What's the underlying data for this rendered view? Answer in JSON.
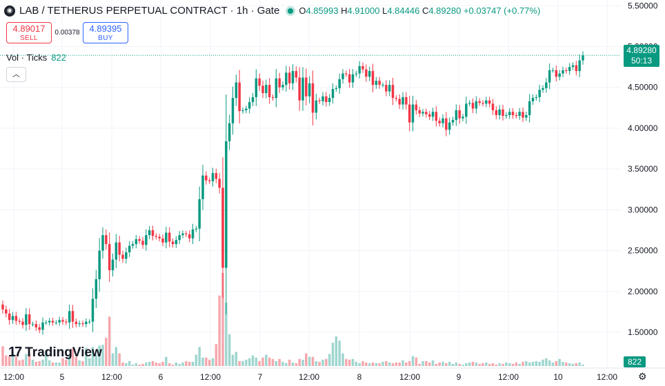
{
  "header": {
    "logo_icon": "exchange-logo-icon",
    "title": "LAB / TETHERUS PERPETUAL CONTRACT · 1h · Gate",
    "open_label": "O",
    "open": "4.85993",
    "high_label": "H",
    "high": "4.91000",
    "low_label": "L",
    "low": "4.84446",
    "close_label": "C",
    "close": "4.89280",
    "change": "+0.03747 (+0.77%)"
  },
  "trade": {
    "sell_price": "4.89017",
    "sell_label": "SELL",
    "spread": "0.00378",
    "buy_price": "4.89395",
    "buy_label": "BUY"
  },
  "volume_legend": {
    "label": "Vol · Ticks",
    "value": "822"
  },
  "collapse_icon": "chevron-up-icon",
  "price_tag": {
    "price": "4.89280",
    "countdown": "50:13"
  },
  "volume_tag": "822",
  "brand": {
    "mark": "17",
    "name": "TradingView"
  },
  "settings_icon": "gear-icon",
  "colors": {
    "up": "#089981",
    "down": "#f23645",
    "up_vol": "#9fd6cf",
    "down_vol": "#f6a7ad",
    "grid": "#f0f3fa"
  },
  "chart_data": {
    "type": "candlestick",
    "timeframe": "1h",
    "y_axis": {
      "ticks": [
        1.5,
        2.0,
        2.5,
        3.0,
        3.5,
        4.0,
        4.5,
        5.0,
        5.5
      ],
      "labels": [
        "1.50000",
        "2.00000",
        "2.50000",
        "3.00000",
        "3.50000",
        "4.00000",
        "4.50000",
        "5.00000",
        "5.50000"
      ],
      "range": [
        1.07,
        5.57
      ]
    },
    "x_axis": {
      "labels": [
        "12:00",
        "5",
        "12:00",
        "6",
        "12:00",
        "7",
        "12:00",
        "8",
        "12:00",
        "9",
        "12:00",
        "10",
        "12:00"
      ]
    },
    "candles_close": [
      1.78,
      1.73,
      1.65,
      1.7,
      1.64,
      1.63,
      1.59,
      1.72,
      1.6,
      1.6,
      1.56,
      1.53,
      1.62,
      1.62,
      1.64,
      1.62,
      1.62,
      1.65,
      1.63,
      1.62,
      1.76,
      1.63,
      1.6,
      1.61,
      1.6,
      1.63,
      1.63,
      1.91,
      2.15,
      2.5,
      2.69,
      2.58,
      2.26,
      2.39,
      2.6,
      2.45,
      2.4,
      2.48,
      2.56,
      2.58,
      2.64,
      2.62,
      2.57,
      2.69,
      2.75,
      2.68,
      2.67,
      2.65,
      2.6,
      2.72,
      2.61,
      2.58,
      2.63,
      2.69,
      2.71,
      2.7,
      2.65,
      2.76,
      2.77,
      3.13,
      3.42,
      3.36,
      3.35,
      3.45,
      3.38,
      3.27,
      2.29,
      3.84,
      4.06,
      4.37,
      4.56,
      4.21,
      4.22,
      4.24,
      4.32,
      4.38,
      4.61,
      4.52,
      4.43,
      4.53,
      4.38,
      4.37,
      4.61,
      4.5,
      4.53,
      4.68,
      4.55,
      4.7,
      4.62,
      4.34,
      4.62,
      4.39,
      4.55,
      4.19,
      4.34,
      4.33,
      4.39,
      4.32,
      4.37,
      4.48,
      4.49,
      4.6,
      4.67,
      4.66,
      4.56,
      4.66,
      4.67,
      4.76,
      4.72,
      4.63,
      4.7,
      4.53,
      4.58,
      4.53,
      4.53,
      4.45,
      4.53,
      4.37,
      4.36,
      4.29,
      4.38,
      4.29,
      4.07,
      4.29,
      4.22,
      4.18,
      4.2,
      4.17,
      4.14,
      4.2,
      4.09,
      4.06,
      4.12,
      3.98,
      4.07,
      4.1,
      4.22,
      4.12,
      4.14,
      4.3,
      4.31,
      4.24,
      4.33,
      4.31,
      4.3,
      4.34,
      4.3,
      4.22,
      4.16,
      4.23,
      4.15,
      4.16,
      4.2,
      4.16,
      4.15,
      4.2,
      4.13,
      4.16,
      4.33,
      4.37,
      4.38,
      4.47,
      4.49,
      4.56,
      4.71,
      4.71,
      4.63,
      4.67,
      4.71,
      4.7,
      4.75,
      4.77,
      4.7,
      4.83,
      4.89
    ],
    "volumes": [
      0.28,
      0.15,
      0.14,
      0.21,
      0.13,
      0.08,
      0.09,
      0.17,
      0.17,
      0.09,
      0.06,
      0.07,
      0.09,
      0.22,
      0.08,
      0.05,
      0.05,
      0.05,
      0.11,
      0.09,
      0.16,
      0.25,
      0.13,
      0.08,
      0.07,
      0.26,
      0.11,
      0.27,
      0.16,
      0.29,
      0.3,
      0.4,
      0.7,
      0.18,
      0.27,
      0.18,
      0.05,
      0.04,
      0.07,
      0.02,
      0.04,
      0.02,
      0.03,
      0.05,
      0.06,
      0.07,
      0.05,
      0.04,
      0.06,
      0.13,
      0.04,
      0.02,
      0.05,
      0.03,
      0.05,
      0.07,
      0.06,
      0.06,
      0.16,
      0.27,
      0.12,
      0.12,
      0.09,
      0.11,
      0.31,
      1.0,
      1.32,
      0.9,
      0.45,
      0.16,
      0.2,
      0.07,
      0.07,
      0.09,
      0.11,
      0.15,
      0.12,
      0.07,
      0.12,
      0.16,
      0.12,
      0.1,
      0.07,
      0.1,
      0.06,
      0.04,
      0.09,
      0.05,
      0.04,
      0.1,
      0.09,
      0.18,
      0.13,
      0.13,
      0.07,
      0.06,
      0.09,
      0.1,
      0.17,
      0.33,
      0.42,
      0.36,
      0.18,
      0.1,
      0.09,
      0.1,
      0.06,
      0.04,
      0.07,
      0.05,
      0.04,
      0.05,
      0.04,
      0.04,
      0.06,
      0.07,
      0.05,
      0.04,
      0.05,
      0.05,
      0.08,
      0.05,
      0.07,
      0.14,
      0.12,
      0.03,
      0.07,
      0.07,
      0.05,
      0.08,
      0.03,
      0.05,
      0.06,
      0.04,
      0.06,
      0.03,
      0.05,
      0.03,
      0.02,
      0.04,
      0.05,
      0.06,
      0.05,
      0.03,
      0.04,
      0.05,
      0.03,
      0.04,
      0.02,
      0.04,
      0.03,
      0.05,
      0.04,
      0.03,
      0.05,
      0.03,
      0.06,
      0.07,
      0.05,
      0.06,
      0.07,
      0.06,
      0.09,
      0.11,
      0.08,
      0.05,
      0.07,
      0.1,
      0.06,
      0.05,
      0.04,
      0.03,
      0.04,
      0.05,
      0.02
    ],
    "last_price": 4.8928
  }
}
